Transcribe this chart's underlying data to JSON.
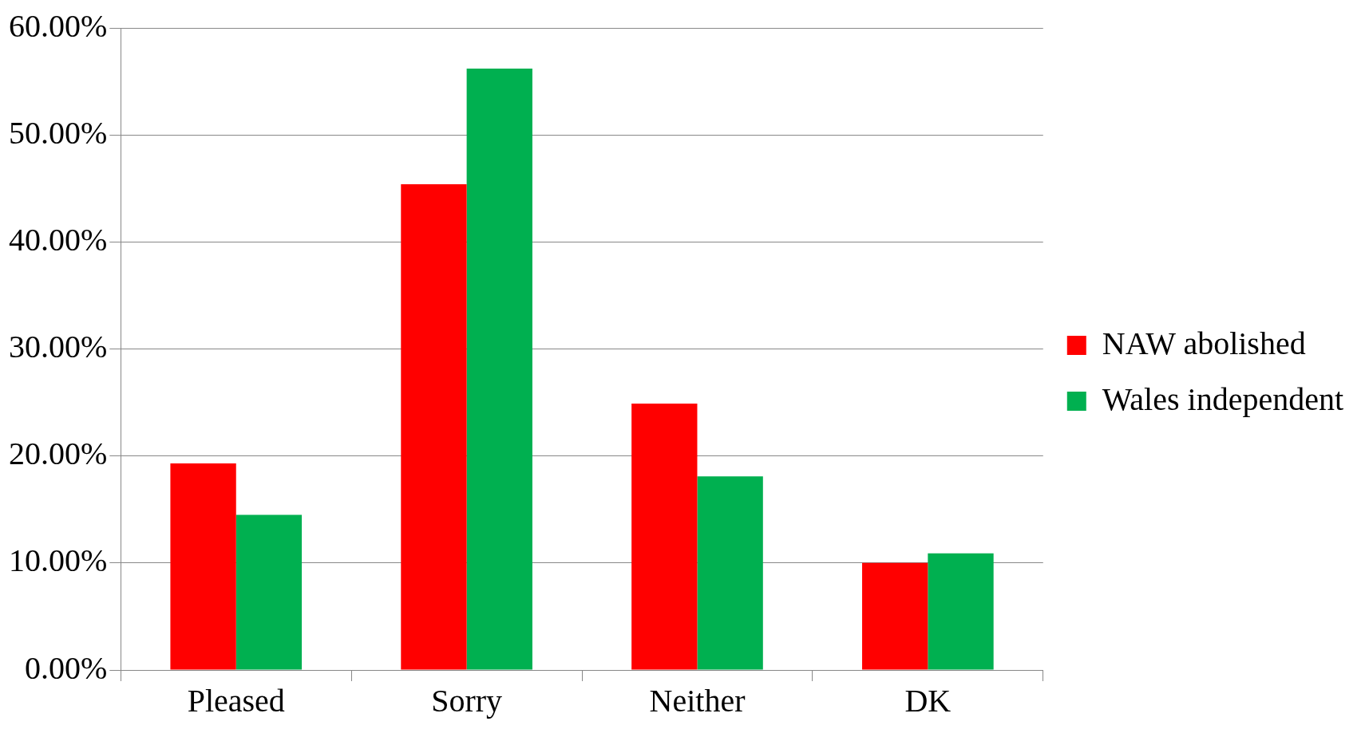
{
  "chart_data": {
    "type": "bar",
    "categories": [
      "Pleased",
      "Sorry",
      "Neither",
      "DK"
    ],
    "series": [
      {
        "name": "NAW abolished",
        "color": "#ff0000",
        "values": [
          19.3,
          45.4,
          24.9,
          10.0
        ]
      },
      {
        "name": "Wales independent",
        "color": "#00b050",
        "values": [
          14.5,
          56.2,
          18.1,
          10.9
        ]
      }
    ],
    "ylim": [
      0,
      60
    ],
    "yticks": [
      {
        "value": 0,
        "label": "0.00%"
      },
      {
        "value": 10,
        "label": "10.00%"
      },
      {
        "value": 20,
        "label": "20.00%"
      },
      {
        "value": 30,
        "label": "30.00%"
      },
      {
        "value": 40,
        "label": "40.00%"
      },
      {
        "value": 50,
        "label": "50.00%"
      },
      {
        "value": 60,
        "label": "60.00%"
      }
    ],
    "grid": "y",
    "legend": "right"
  }
}
